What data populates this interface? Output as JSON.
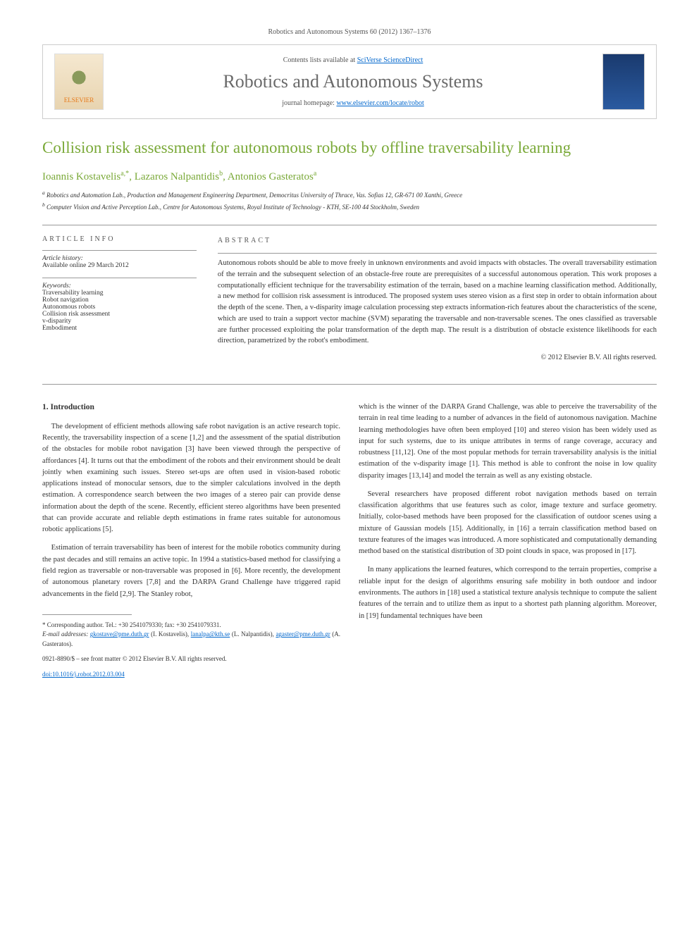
{
  "header": {
    "running_head": "Robotics and Autonomous Systems 60 (2012) 1367–1376"
  },
  "contents_box": {
    "logo_label": "ELSEVIER",
    "contents_line_prefix": "Contents lists available at ",
    "contents_link": "SciVerse ScienceDirect",
    "journal_name": "Robotics and Autonomous Systems",
    "homepage_prefix": "journal homepage: ",
    "homepage_link": "www.elsevier.com/locate/robot"
  },
  "title": "Collision risk assessment for autonomous robots by offline traversability learning",
  "authors": [
    {
      "name": "Ioannis Kostavelis",
      "marks": "a,*"
    },
    {
      "name": "Lazaros Nalpantidis",
      "marks": "b"
    },
    {
      "name": "Antonios Gasteratos",
      "marks": "a"
    }
  ],
  "affiliations": [
    {
      "mark": "a",
      "text": "Robotics and Automation Lab., Production and Management Engineering Department, Democritus University of Thrace, Vas. Sofias 12, GR-671 00 Xanthi, Greece"
    },
    {
      "mark": "b",
      "text": "Computer Vision and Active Perception Lab., Centre for Autonomous Systems, Royal Institute of Technology - KTH, SE-100 44 Stockholm, Sweden"
    }
  ],
  "article_info": {
    "label": "ARTICLE INFO",
    "history_heading": "Article history:",
    "history_text": "Available online 29 March 2012",
    "keywords_heading": "Keywords:",
    "keywords": [
      "Traversability learning",
      "Robot navigation",
      "Autonomous robots",
      "Collision risk assessment",
      "v-disparity",
      "Embodiment"
    ]
  },
  "abstract": {
    "label": "ABSTRACT",
    "text": "Autonomous robots should be able to move freely in unknown environments and avoid impacts with obstacles. The overall traversability estimation of the terrain and the subsequent selection of an obstacle-free route are prerequisites of a successful autonomous operation. This work proposes a computationally efficient technique for the traversability estimation of the terrain, based on a machine learning classification method. Additionally, a new method for collision risk assessment is introduced. The proposed system uses stereo vision as a first step in order to obtain information about the depth of the scene. Then, a v-disparity image calculation processing step extracts information-rich features about the characteristics of the scene, which are used to train a support vector machine (SVM) separating the traversable and non-traversable scenes. The ones classified as traversable are further processed exploiting the polar transformation of the depth map. The result is a distribution of obstacle existence likelihoods for each direction, parametrized by the robot's embodiment.",
    "copyright": "© 2012 Elsevier B.V. All rights reserved."
  },
  "body": {
    "section_heading": "1. Introduction",
    "left_paragraphs": [
      "The development of efficient methods allowing safe robot navigation is an active research topic. Recently, the traversability inspection of a scene [1,2] and the assessment of the spatial distribution of the obstacles for mobile robot navigation [3] have been viewed through the perspective of affordances [4]. It turns out that the embodiment of the robots and their environment should be dealt jointly when examining such issues. Stereo set-ups are often used in vision-based robotic applications instead of monocular sensors, due to the simpler calculations involved in the depth estimation. A correspondence search between the two images of a stereo pair can provide dense information about the depth of the scene. Recently, efficient stereo algorithms have been presented that can provide accurate and reliable depth estimations in frame rates suitable for autonomous robotic applications [5].",
      "Estimation of terrain traversability has been of interest for the mobile robotics community during the past decades and still remains an active topic. In 1994 a statistics-based method for classifying a field region as traversable or non-traversable was proposed in [6]. More recently, the development of autonomous planetary rovers [7,8] and the DARPA Grand Challenge have triggered rapid advancements in the field [2,9]. The Stanley robot,"
    ],
    "right_paragraphs": [
      "which is the winner of the DARPA Grand Challenge, was able to perceive the traversability of the terrain in real time leading to a number of advances in the field of autonomous navigation. Machine learning methodologies have often been employed [10] and stereo vision has been widely used as input for such systems, due to its unique attributes in terms of range coverage, accuracy and robustness [11,12]. One of the most popular methods for terrain traversability analysis is the initial estimation of the v-disparity image [1]. This method is able to confront the noise in low quality disparity images [13,14] and model the terrain as well as any existing obstacle.",
      "Several researchers have proposed different robot navigation methods based on terrain classification algorithms that use features such as color, image texture and surface geometry. Initially, color-based methods have been proposed for the classification of outdoor scenes using a mixture of Gaussian models [15]. Additionally, in [16] a terrain classification method based on texture features of the images was introduced. A more sophisticated and computationally demanding method based on the statistical distribution of 3D point clouds in space, was proposed in [17].",
      "In many applications the learned features, which correspond to the terrain properties, comprise a reliable input for the design of algorithms ensuring safe mobility in both outdoor and indoor environments. The authors in [18] used a statistical texture analysis technique to compute the salient features of the terrain and to utilize them as input to a shortest path planning algorithm. Moreover, in [19] fundamental techniques have been"
    ]
  },
  "footnotes": {
    "corresponding": "Corresponding author. Tel.: +30 2541079330; fax: +30 2541079331.",
    "emails_label": "E-mail addresses:",
    "emails": [
      {
        "addr": "gkostave@pme.duth.gr",
        "who": "(I. Kostavelis)"
      },
      {
        "addr": "lanalpa@kth.se",
        "who": "(L. Nalpantidis)"
      },
      {
        "addr": "agaster@pme.duth.gr",
        "who": "(A. Gasteratos)."
      }
    ],
    "copyright_line": "0921-8890/$ – see front matter © 2012 Elsevier B.V. All rights reserved.",
    "doi": "doi:10.1016/j.robot.2012.03.004"
  },
  "links": {
    "color": "#0066cc"
  },
  "colors": {
    "accent_green": "#7aa938",
    "text": "#333333",
    "rule": "#999999",
    "background": "#ffffff"
  }
}
